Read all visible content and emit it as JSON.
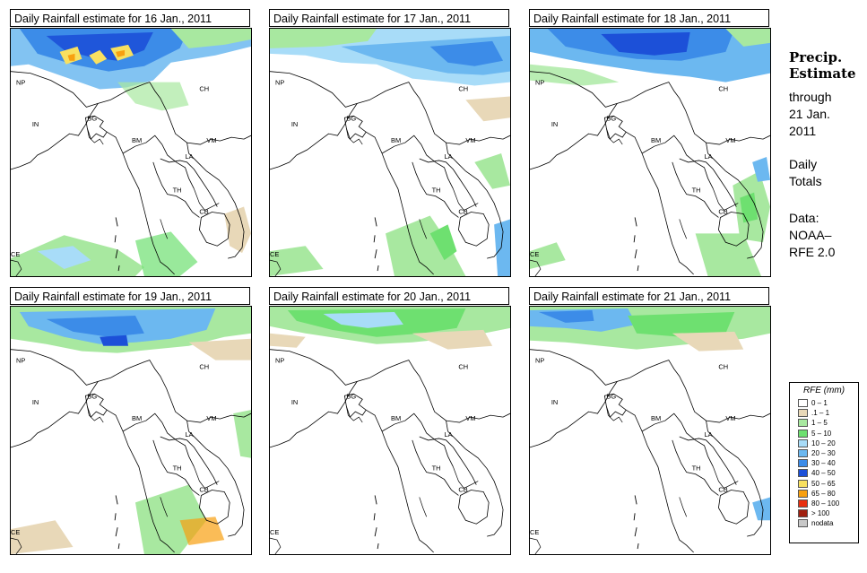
{
  "panels": [
    {
      "title": "Daily Rainfall estimate for  16 Jan., 2011",
      "pattern": "p16"
    },
    {
      "title": "Daily Rainfall estimate for  17 Jan., 2011",
      "pattern": "p17"
    },
    {
      "title": "Daily Rainfall estimate for  18 Jan., 2011",
      "pattern": "p18"
    },
    {
      "title": "Daily Rainfall estimate for  19 Jan., 2011",
      "pattern": "p19"
    },
    {
      "title": "Daily Rainfall estimate for  20 Jan., 2011",
      "pattern": "p20"
    },
    {
      "title": "Daily Rainfall estimate for  21 Jan., 2011",
      "pattern": "p21"
    }
  ],
  "map_labels": {
    "np": "NP",
    "ch": "CH",
    "in": "IN",
    "bg": "BG",
    "bm": "BM",
    "vm": "VM",
    "la": "LA",
    "th": "TH",
    "cb": "CB",
    "ce": "CE"
  },
  "sidebar": {
    "heading_line1": "Precip.",
    "heading_line2": "Estimate",
    "line1": "through",
    "line2": "21 Jan.",
    "line3": "2011",
    "line4": "Daily",
    "line5": "Totals",
    "line6": "Data:",
    "line7": "NOAA–",
    "line8": "RFE 2.0"
  },
  "legend": {
    "title": "RFE (mm)",
    "items": [
      {
        "label": "0 – 1",
        "color": "#ffffff"
      },
      {
        "label": ".1 – 1",
        "color": "#e8d8b8"
      },
      {
        "label": "1 – 5",
        "color": "#a8e8a0"
      },
      {
        "label": "5 – 10",
        "color": "#6ee070"
      },
      {
        "label": "10 – 20",
        "color": "#a8dcf8"
      },
      {
        "label": "20 – 30",
        "color": "#6cb8f0"
      },
      {
        "label": "30 – 40",
        "color": "#3c8ce8"
      },
      {
        "label": "40 – 50",
        "color": "#1c50d8"
      },
      {
        "label": "50 – 65",
        "color": "#f8e060"
      },
      {
        "label": "65 – 80",
        "color": "#f8a010"
      },
      {
        "label": "80 – 100",
        "color": "#e83010"
      },
      {
        "label": "> 100",
        "color": "#a02010"
      },
      {
        "label": "nodata",
        "color": "#c8c8c8"
      }
    ]
  }
}
